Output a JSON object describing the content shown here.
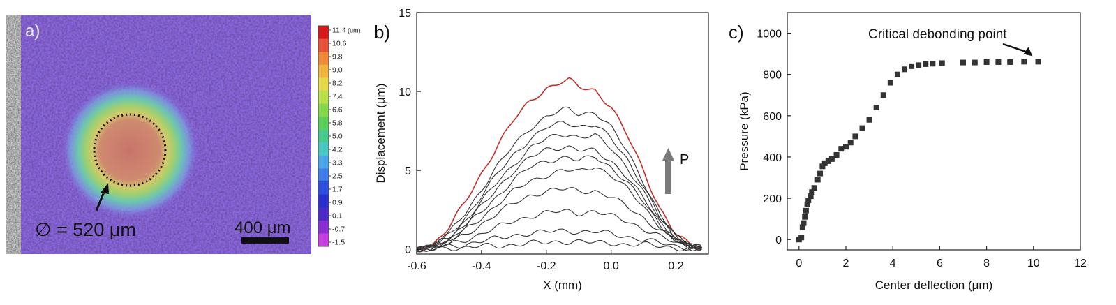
{
  "panel_a": {
    "label": "a)",
    "diameter_label": "∅ = 520 μm",
    "scale_bar_label": "400 μm",
    "colorbar": {
      "unit": "(um)",
      "ticks": [
        "11.4",
        "10.6",
        "9.8",
        "9.0",
        "8.2",
        "7.4",
        "6.6",
        "5.8",
        "5.0",
        "4.2",
        "3.3",
        "2.5",
        "1.7",
        "0.9",
        "0.1",
        "-0.7",
        "-1.5"
      ],
      "colors": [
        "#d7191c",
        "#e8523a",
        "#f08a3a",
        "#f2b441",
        "#e6d84b",
        "#b9e04a",
        "#86d84a",
        "#5ccf5a",
        "#49c98d",
        "#48c8c0",
        "#4aa6e6",
        "#3f7ce8",
        "#2e4fe0",
        "#2a2fd0",
        "#4a2bc8",
        "#8a2fd6",
        "#c63ee0"
      ]
    },
    "colors": {
      "background": "#8866dd",
      "center": "#c8746a"
    }
  },
  "chart_data": [
    {
      "panel_label": "b)",
      "type": "line",
      "xlabel": "X (mm)",
      "ylabel": "Displacement (μm)",
      "xlim": [
        -0.6,
        0.3
      ],
      "ylim": [
        -0.3,
        15
      ],
      "xticks": [
        "-0.6",
        "-0.4",
        "-0.2",
        "0.0",
        "0.2"
      ],
      "yticks": [
        "0",
        "5",
        "10",
        "15"
      ],
      "annotation": "P",
      "peak_x": -0.13,
      "x": [
        -0.6,
        -0.55,
        -0.5,
        -0.45,
        -0.4,
        -0.35,
        -0.3,
        -0.25,
        -0.2,
        -0.15,
        -0.13,
        -0.1,
        -0.05,
        0.0,
        0.05,
        0.1,
        0.15,
        0.2,
        0.25,
        0.28
      ],
      "series": [
        {
          "color": "#c0302b",
          "values": [
            0.0,
            0.3,
            1.4,
            3.0,
            4.8,
            6.6,
            8.2,
            9.4,
            10.2,
            10.6,
            10.7,
            10.3,
            10.1,
            9.0,
            7.2,
            5.0,
            2.6,
            0.9,
            0.2,
            0.1
          ]
        },
        {
          "color": "#333333",
          "values": [
            0.0,
            0.2,
            1.0,
            2.3,
            3.8,
            5.3,
            6.6,
            7.7,
            8.4,
            8.8,
            8.85,
            8.6,
            8.7,
            7.7,
            6.2,
            4.3,
            2.2,
            0.8,
            0.2,
            0.1
          ]
        },
        {
          "color": "#333333",
          "values": [
            0.0,
            0.2,
            0.9,
            2.0,
            3.4,
            4.8,
            6.0,
            7.0,
            7.7,
            8.0,
            8.0,
            7.8,
            7.9,
            7.0,
            5.7,
            4.0,
            2.0,
            0.8,
            0.2,
            0.1
          ]
        },
        {
          "color": "#333333",
          "values": [
            0.0,
            0.2,
            0.8,
            1.8,
            3.0,
            4.3,
            5.4,
            6.4,
            7.0,
            7.3,
            7.3,
            7.1,
            7.2,
            6.4,
            5.2,
            3.6,
            1.9,
            0.7,
            0.2,
            0.1
          ]
        },
        {
          "color": "#333333",
          "values": [
            0.0,
            0.2,
            0.7,
            1.6,
            2.7,
            3.9,
            5.0,
            5.8,
            6.3,
            6.5,
            6.5,
            6.3,
            6.2,
            5.6,
            4.6,
            3.2,
            1.7,
            0.7,
            0.2,
            0.1
          ]
        },
        {
          "color": "#333333",
          "values": [
            0.0,
            0.2,
            0.6,
            1.4,
            2.4,
            3.4,
            4.4,
            5.2,
            5.6,
            5.8,
            5.8,
            5.6,
            5.9,
            5.2,
            4.2,
            3.0,
            1.6,
            0.6,
            0.2,
            0.1
          ]
        },
        {
          "color": "#333333",
          "values": [
            0.0,
            0.1,
            0.5,
            1.2,
            2.0,
            2.9,
            3.7,
            4.3,
            4.7,
            5.0,
            5.0,
            4.9,
            5.3,
            4.7,
            3.8,
            2.7,
            1.5,
            0.6,
            0.2,
            0.1
          ]
        },
        {
          "color": "#333333",
          "values": [
            0.0,
            0.1,
            0.4,
            0.9,
            1.6,
            2.3,
            2.9,
            3.4,
            3.7,
            3.8,
            3.8,
            3.7,
            3.7,
            3.3,
            2.7,
            2.0,
            1.2,
            0.5,
            0.2,
            0.1
          ]
        },
        {
          "color": "#333333",
          "values": [
            0.0,
            0.1,
            0.3,
            0.6,
            1.0,
            1.4,
            1.8,
            2.1,
            2.3,
            2.4,
            2.4,
            2.3,
            2.4,
            2.1,
            1.8,
            1.3,
            0.8,
            0.4,
            0.1,
            0.1
          ]
        },
        {
          "color": "#333333",
          "values": [
            0.0,
            0.1,
            0.2,
            0.3,
            0.5,
            0.7,
            0.9,
            1.0,
            1.1,
            1.2,
            1.2,
            1.1,
            1.1,
            1.0,
            0.8,
            0.6,
            0.4,
            0.2,
            0.1,
            0.1
          ]
        },
        {
          "color": "#333333",
          "values": [
            0.0,
            0.0,
            0.1,
            0.1,
            0.2,
            0.2,
            0.3,
            0.4,
            0.4,
            0.5,
            0.5,
            0.5,
            0.4,
            0.4,
            0.3,
            0.3,
            0.2,
            0.1,
            0.0,
            0.0
          ]
        }
      ]
    },
    {
      "panel_label": "c)",
      "type": "scatter",
      "xlabel": "Center deflection (μm)",
      "ylabel": "Pressure (kPa)",
      "xlim": [
        -0.5,
        12
      ],
      "ylim": [
        -50,
        1100
      ],
      "xticks": [
        "0",
        "2",
        "4",
        "6",
        "8",
        "10",
        "12"
      ],
      "yticks": [
        "0",
        "200",
        "400",
        "600",
        "800",
        "1000"
      ],
      "annotation": "Critical debonding point",
      "marker_color": "#333333",
      "points": [
        [
          0.0,
          0
        ],
        [
          0.1,
          10
        ],
        [
          0.15,
          60
        ],
        [
          0.2,
          80
        ],
        [
          0.25,
          110
        ],
        [
          0.3,
          140
        ],
        [
          0.35,
          170
        ],
        [
          0.4,
          190
        ],
        [
          0.5,
          210
        ],
        [
          0.55,
          230
        ],
        [
          0.65,
          250
        ],
        [
          0.8,
          290
        ],
        [
          0.9,
          320
        ],
        [
          1.0,
          355
        ],
        [
          1.1,
          370
        ],
        [
          1.25,
          380
        ],
        [
          1.4,
          390
        ],
        [
          1.6,
          410
        ],
        [
          1.8,
          440
        ],
        [
          2.0,
          450
        ],
        [
          2.2,
          470
        ],
        [
          2.4,
          500
        ],
        [
          2.7,
          540
        ],
        [
          3.0,
          580
        ],
        [
          3.3,
          640
        ],
        [
          3.6,
          700
        ],
        [
          3.9,
          760
        ],
        [
          4.2,
          800
        ],
        [
          4.5,
          825
        ],
        [
          4.8,
          840
        ],
        [
          5.1,
          845
        ],
        [
          5.4,
          850
        ],
        [
          5.7,
          852
        ],
        [
          6.1,
          855
        ],
        [
          7.0,
          858
        ],
        [
          7.5,
          858
        ],
        [
          8.0,
          860
        ],
        [
          8.5,
          860
        ],
        [
          9.0,
          860
        ],
        [
          9.6,
          862
        ],
        [
          10.2,
          862
        ]
      ]
    }
  ]
}
